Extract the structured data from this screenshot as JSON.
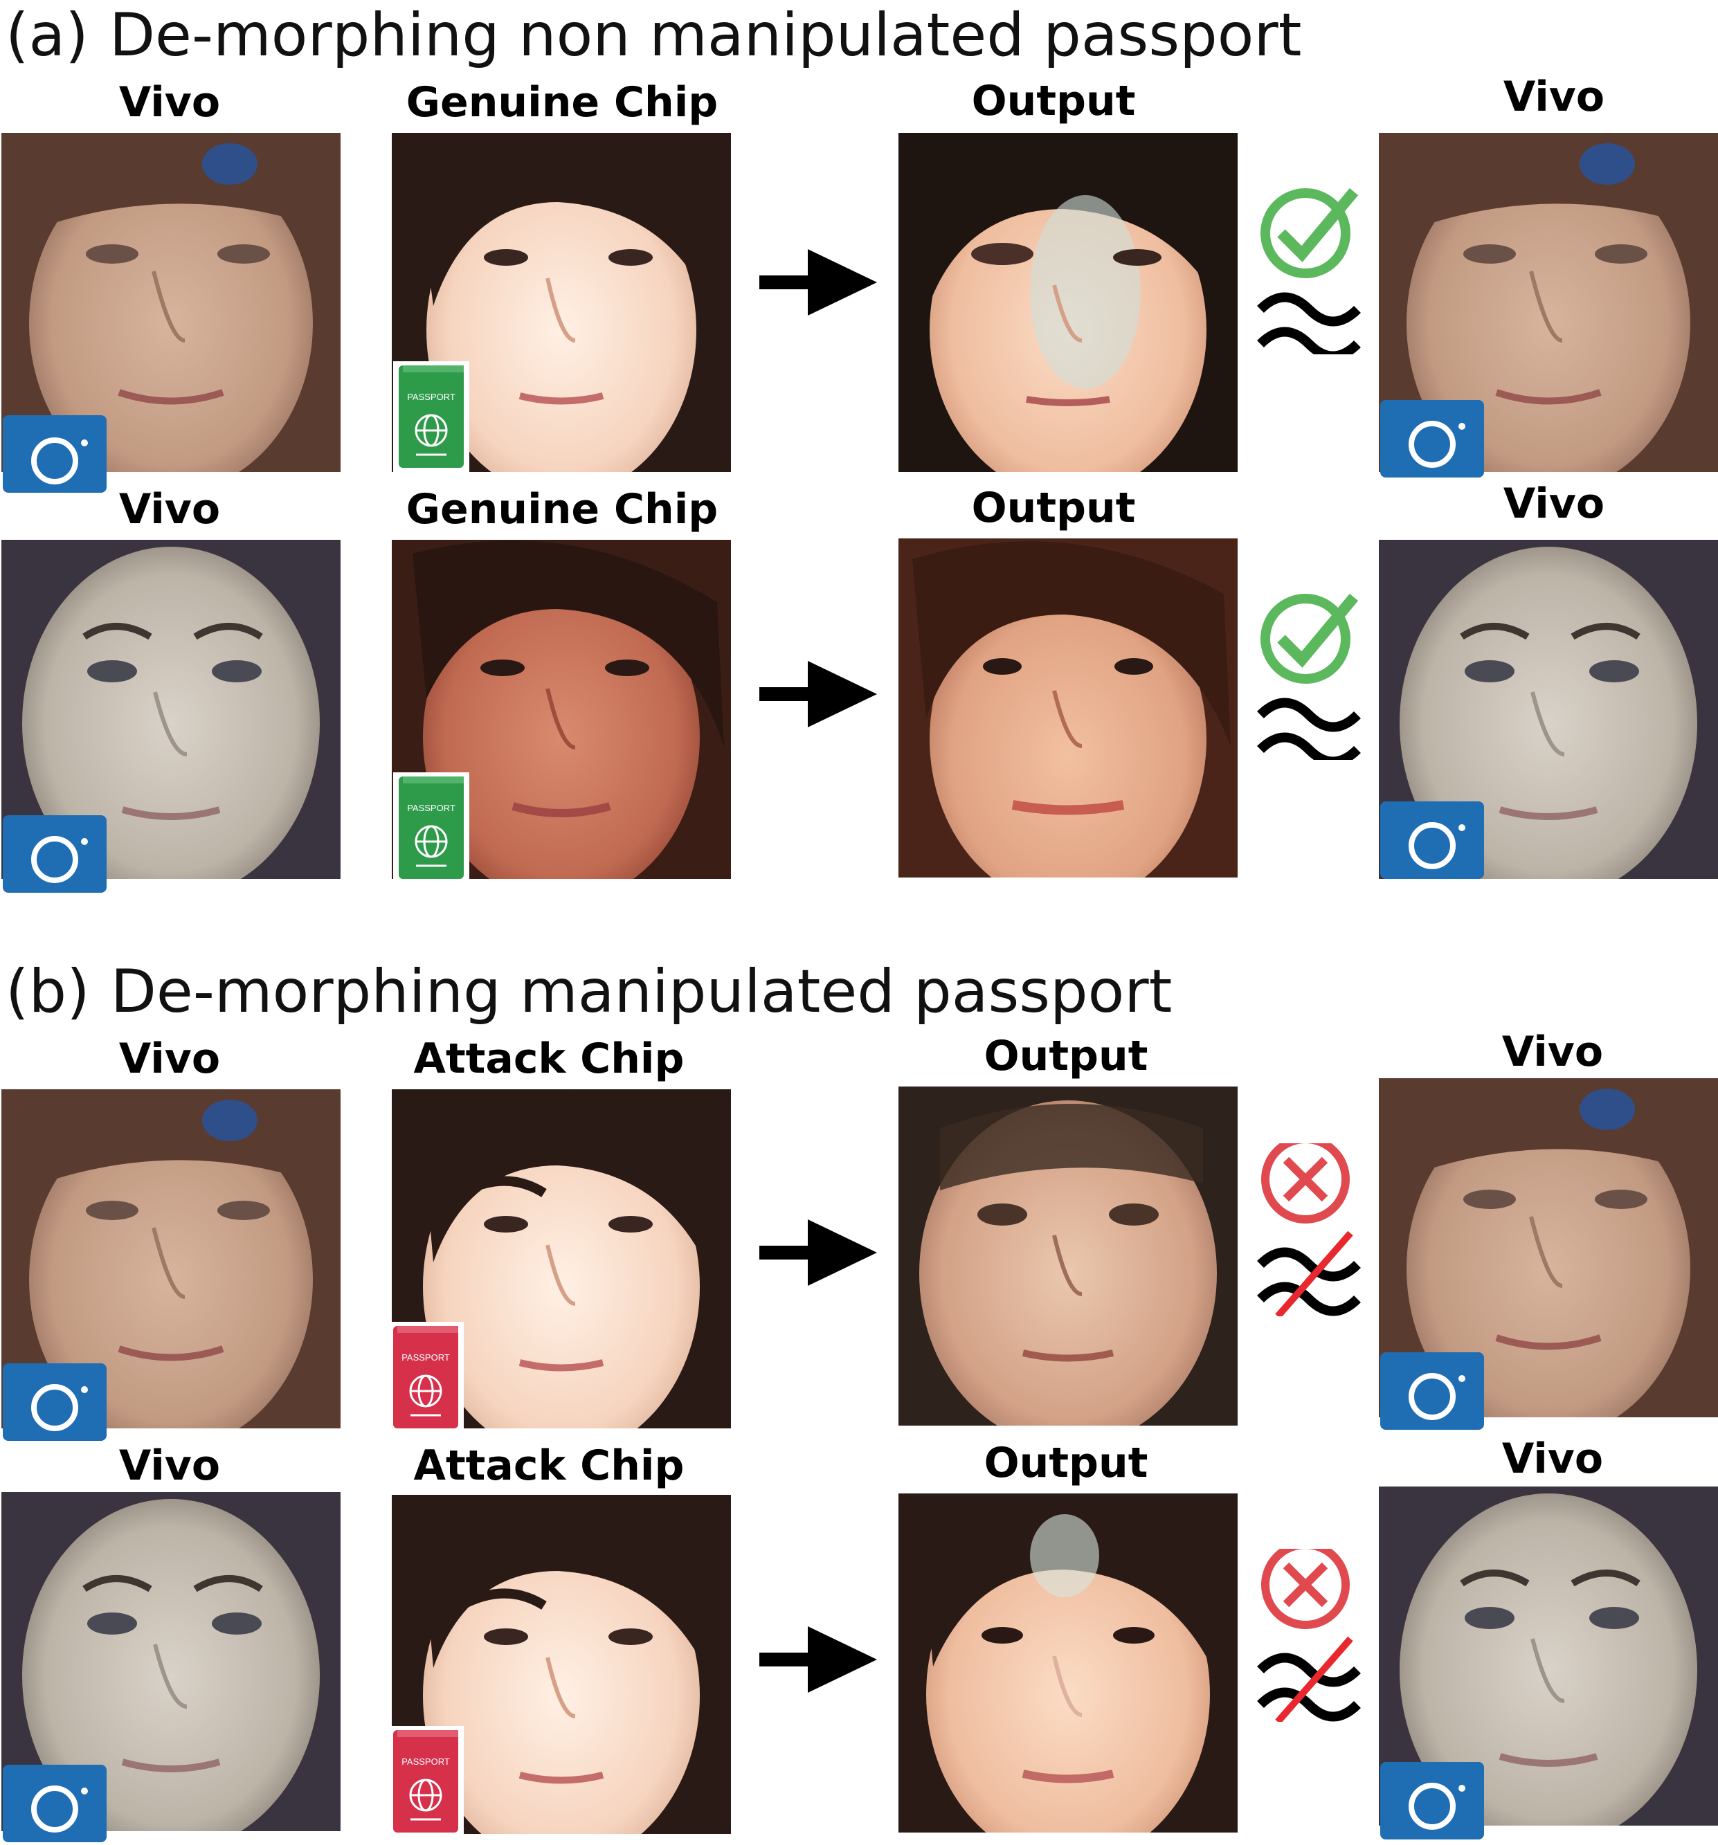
{
  "sections": [
    {
      "tag": "(a)",
      "title": "De-morphing non manipulated passport",
      "rows": [
        {
          "vivo_label": "Vivo",
          "chip_label": "Genuine Chip",
          "output_label": "Output",
          "ref_label": "Vivo",
          "chip_badge": "genuine",
          "verdict": "match"
        },
        {
          "vivo_label": "Vivo",
          "chip_label": "Genuine Chip",
          "output_label": "Output",
          "ref_label": "Vivo",
          "chip_badge": "genuine",
          "verdict": "match"
        }
      ]
    },
    {
      "tag": "(b)",
      "title": "De-morphing manipulated passport",
      "rows": [
        {
          "vivo_label": "Vivo",
          "chip_label": "Attack Chip",
          "output_label": "Output",
          "ref_label": "Vivo",
          "chip_badge": "attack",
          "verdict": "no-match"
        },
        {
          "vivo_label": "Vivo",
          "chip_label": "Attack Chip",
          "output_label": "Output",
          "ref_label": "Vivo",
          "chip_badge": "attack",
          "verdict": "no-match"
        }
      ]
    }
  ],
  "badge_text": "PASSPORT",
  "colors": {
    "camera_badge": "#1f6db3",
    "genuine_passport": "#2e9b4a",
    "attack_passport": "#d6304a",
    "check": "#5cb85c",
    "cross": "#e04a4f",
    "strike": "#e8282e"
  },
  "icons": [
    "camera-icon",
    "passport-icon",
    "arrow-right-icon",
    "check-circle-icon",
    "cross-circle-icon",
    "approx-equal-icon"
  ]
}
